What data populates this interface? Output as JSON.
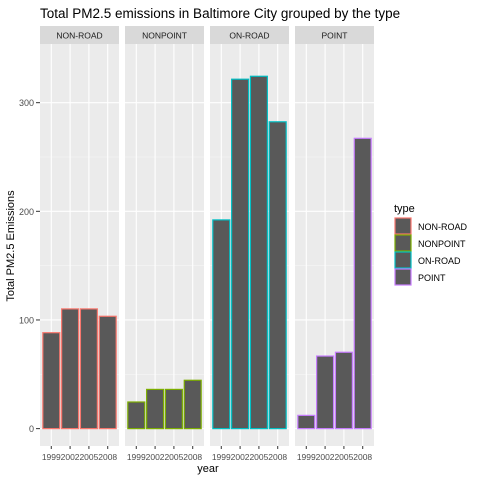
{
  "chart_data": {
    "type": "bar",
    "title": "Total PM2.5 emissions in Baltimore City grouped by the type",
    "xlabel": "year",
    "ylabel": "Total PM2.5 Emissions",
    "categories": [
      "1999",
      "2002",
      "2005",
      "2008"
    ],
    "ylim": [
      -16,
      354
    ],
    "yticks": [
      0,
      100,
      200,
      300
    ],
    "grid": true,
    "legend": {
      "title": "type",
      "position": "right",
      "entries": [
        "NON-ROAD",
        "NONPOINT",
        "ON-ROAD",
        "POINT"
      ]
    },
    "colors": {
      "panel_bg": "#ebebeb",
      "strip_bg": "#d9d9d9",
      "grid_major": "#ffffff",
      "bar_fill": "#595959",
      "axis_text": "#4d4d4d"
    },
    "facets": [
      {
        "name": "NON-ROAD",
        "outline": "#f8766d",
        "values": [
          88.3,
          110.2,
          110.2,
          103.4
        ]
      },
      {
        "name": "NONPOINT",
        "outline": "#7cae00",
        "values": [
          24.5,
          36.1,
          36.1,
          44.5
        ]
      },
      {
        "name": "ON-ROAD",
        "outline": "#00bfc4",
        "values": [
          192.1,
          321.6,
          324.3,
          282.4
        ]
      },
      {
        "name": "POINT",
        "outline": "#c77cff",
        "values": [
          12.2,
          66.8,
          70.3,
          267.2
        ]
      }
    ]
  }
}
